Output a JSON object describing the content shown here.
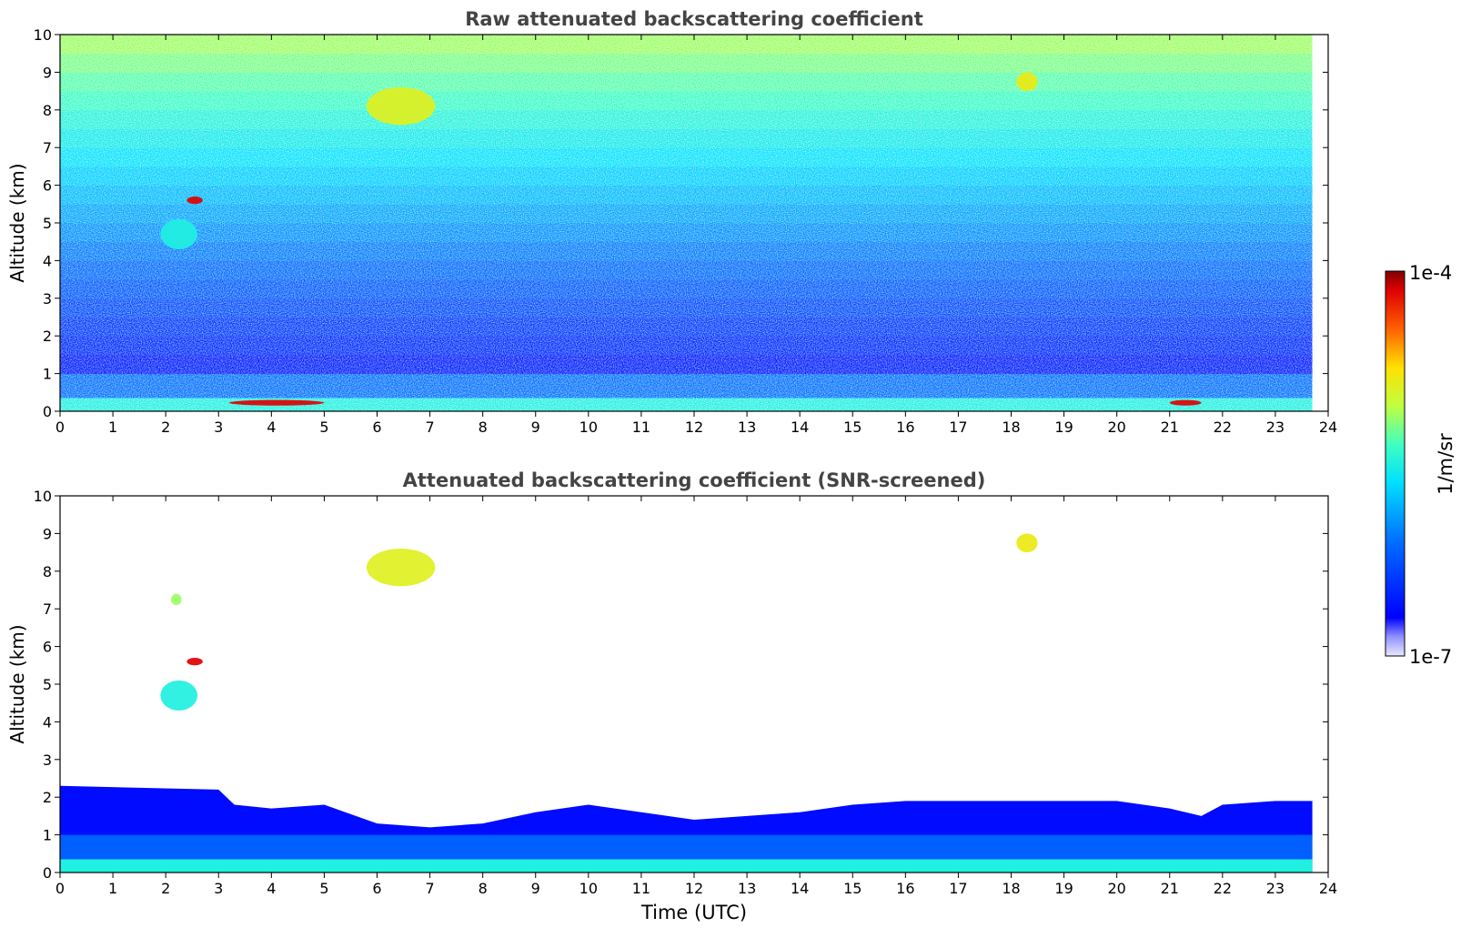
{
  "chart_data": [
    {
      "type": "heatmap",
      "title": "Raw attenuated backscattering coefficient",
      "xlabel": "",
      "ylabel": "Altitude (km)",
      "xlim": [
        0,
        24
      ],
      "ylim": [
        0,
        10
      ],
      "xticks": [
        "0",
        "1",
        "2",
        "3",
        "4",
        "5",
        "6",
        "7",
        "8",
        "9",
        "10",
        "11",
        "12",
        "13",
        "14",
        "15",
        "16",
        "17",
        "18",
        "19",
        "20",
        "21",
        "22",
        "23",
        "24"
      ],
      "yticks": [
        "0",
        "1",
        "2",
        "3",
        "4",
        "5",
        "6",
        "7",
        "8",
        "9",
        "10"
      ],
      "data_end_time": 23.7,
      "color_scale": "log",
      "layers": [
        {
          "feature": "aerosol_surface_layer",
          "x_range": [
            0,
            23.7
          ],
          "altitude_km": [
            0,
            0.35
          ],
          "level": 0.5
        },
        {
          "feature": "boundary_layer",
          "x_range": [
            0,
            23.7
          ],
          "altitude_km": [
            0.35,
            1.0
          ],
          "level": 0.3
        },
        {
          "feature": "noise_background",
          "x_range": [
            0,
            23.7
          ],
          "altitude_km": [
            1.0,
            10.0
          ],
          "level": 0.45
        }
      ],
      "features": [
        {
          "name": "cirrus",
          "time_utc": [
            5.8,
            7.1
          ],
          "altitude_km": [
            7.6,
            8.6
          ],
          "level": 0.7
        },
        {
          "name": "cirrus",
          "time_utc": [
            18.1,
            18.5
          ],
          "altitude_km": [
            8.5,
            9.0
          ],
          "level": 0.72
        },
        {
          "name": "mid-level cloud",
          "time_utc": [
            1.9,
            2.6
          ],
          "altitude_km": [
            4.3,
            5.1
          ],
          "level": 0.5
        },
        {
          "name": "cloud",
          "time_utc": [
            2.4,
            2.7
          ],
          "altitude_km": [
            5.5,
            5.7
          ],
          "level": 0.95
        },
        {
          "name": "low cloud",
          "time_utc": [
            3.2,
            5.0
          ],
          "altitude_km": [
            0.15,
            0.3
          ],
          "level": 0.95
        },
        {
          "name": "low cloud",
          "time_utc": [
            21.0,
            21.6
          ],
          "altitude_km": [
            0.15,
            0.3
          ],
          "level": 0.95
        }
      ]
    },
    {
      "type": "heatmap",
      "title": "Attenuated backscattering coefficient (SNR-screened)",
      "xlabel": "Time (UTC)",
      "ylabel": "Altitude (km)",
      "xlim": [
        0,
        24
      ],
      "ylim": [
        0,
        10
      ],
      "xticks": [
        "0",
        "1",
        "2",
        "3",
        "4",
        "5",
        "6",
        "7",
        "8",
        "9",
        "10",
        "11",
        "12",
        "13",
        "14",
        "15",
        "16",
        "17",
        "18",
        "19",
        "20",
        "21",
        "22",
        "23",
        "24"
      ],
      "yticks": [
        "0",
        "1",
        "2",
        "3",
        "4",
        "5",
        "6",
        "7",
        "8",
        "9",
        "10"
      ],
      "data_end_time": 23.7,
      "color_scale": "log",
      "boundary_layer_top_km": [
        [
          0,
          2.3
        ],
        [
          3.0,
          2.2
        ],
        [
          3.3,
          1.8
        ],
        [
          4.0,
          1.7
        ],
        [
          5.0,
          1.8
        ],
        [
          6.0,
          1.3
        ],
        [
          7.0,
          1.2
        ],
        [
          8.0,
          1.3
        ],
        [
          9.0,
          1.6
        ],
        [
          10.0,
          1.8
        ],
        [
          11.0,
          1.6
        ],
        [
          12.0,
          1.4
        ],
        [
          13.0,
          1.5
        ],
        [
          14.0,
          1.6
        ],
        [
          15.0,
          1.8
        ],
        [
          16.0,
          1.9
        ],
        [
          17.0,
          1.9
        ],
        [
          18.0,
          1.9
        ],
        [
          19.0,
          1.9
        ],
        [
          20.0,
          1.9
        ],
        [
          21.0,
          1.7
        ],
        [
          21.6,
          1.5
        ],
        [
          22.0,
          1.8
        ],
        [
          23.0,
          1.9
        ],
        [
          23.7,
          1.9
        ]
      ],
      "features": [
        {
          "name": "cirrus",
          "time_utc": [
            5.8,
            7.1
          ],
          "altitude_km": [
            7.6,
            8.6
          ],
          "level": 0.7
        },
        {
          "name": "cirrus",
          "time_utc": [
            18.1,
            18.5
          ],
          "altitude_km": [
            8.5,
            9.0
          ],
          "level": 0.72
        },
        {
          "name": "mid-level cloud",
          "time_utc": [
            1.9,
            2.6
          ],
          "altitude_km": [
            4.3,
            5.1
          ],
          "level": 0.5
        },
        {
          "name": "cloud",
          "time_utc": [
            2.1,
            2.3
          ],
          "altitude_km": [
            7.1,
            7.4
          ],
          "level": 0.62
        },
        {
          "name": "cloud",
          "time_utc": [
            2.4,
            2.7
          ],
          "altitude_km": [
            5.5,
            5.7
          ],
          "level": 0.95
        }
      ]
    }
  ],
  "colorbar": {
    "label": "1/m/sr",
    "max_label": "1e-4",
    "min_label": "1e-7",
    "scale": "log",
    "colormap": "jet"
  }
}
